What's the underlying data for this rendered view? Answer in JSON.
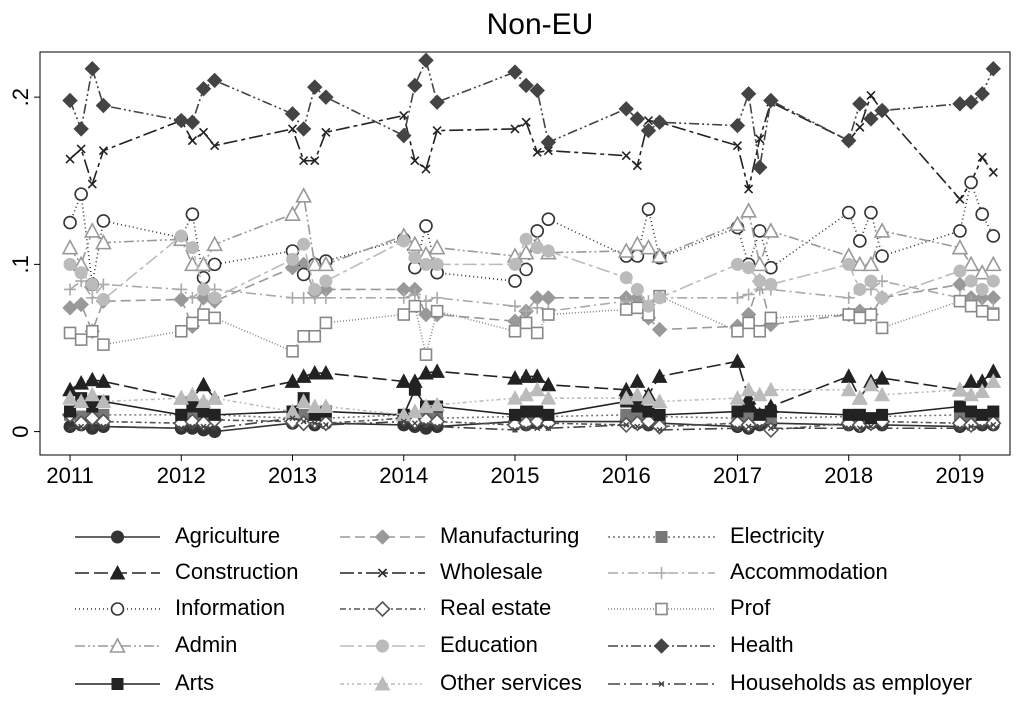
{
  "chart_data": {
    "type": "line",
    "title": "Non-EU",
    "x": [
      2011,
      2011.1,
      2011.2,
      2011.3,
      2012,
      2012.1,
      2012.2,
      2012.3,
      2013,
      2013.1,
      2013.2,
      2013.3,
      2014,
      2014.1,
      2014.2,
      2014.3,
      2015,
      2015.1,
      2015.2,
      2015.3,
      2016,
      2016.1,
      2016.2,
      2016.3,
      2017,
      2017.1,
      2017.2,
      2017.3,
      2018,
      2018.1,
      2018.2,
      2018.3,
      2019,
      2019.1,
      2019.2,
      2019.3
    ],
    "xlim": [
      2010.73,
      2019.45
    ],
    "xticks": [
      2011,
      2012,
      2013,
      2014,
      2015,
      2016,
      2017,
      2018,
      2019
    ],
    "ylim": [
      -0.014,
      0.227
    ],
    "yticks": [
      0,
      {
        "value": 0.1,
        "label": ".1"
      },
      {
        "value": 0.2,
        "label": ".2"
      }
    ],
    "series": [
      {
        "name": "Agriculture",
        "color": "#333333",
        "marker": "circle",
        "hollow": false,
        "dash": "",
        "values": [
          0.003,
          0.004,
          0.002,
          0.003,
          0.002,
          0.002,
          0.001,
          0,
          0.005,
          0.006,
          0.004,
          0.005,
          0.004,
          0.003,
          0.002,
          0.003,
          0.006,
          0.004,
          0.005,
          0.006,
          0.006,
          0.005,
          0.004,
          0.005,
          0.003,
          0.002,
          0.004,
          0.005,
          0.004,
          0.003,
          0.005,
          0.004,
          0.003,
          0.004,
          0.004,
          0.004
        ]
      },
      {
        "name": "Manufacturing",
        "color": "#999999",
        "marker": "diamond",
        "hollow": false,
        "dash": "10,5",
        "values": [
          0.074,
          0.076,
          0.06,
          0.078,
          0.079,
          0.063,
          0.08,
          0.078,
          0.098,
          0.1,
          0.083,
          0.085,
          0.085,
          0.085,
          0.07,
          0.07,
          0.066,
          0.072,
          0.08,
          0.08,
          0.08,
          0.08,
          0.068,
          0.061,
          0.063,
          0.07,
          0.09,
          0.064,
          0.07,
          0.072,
          0.07,
          0.08,
          0.088,
          0.08,
          0.08,
          0.08
        ]
      },
      {
        "name": "Electricity",
        "color": "#777777",
        "marker": "square",
        "hollow": false,
        "dash": "2,3",
        "values": [
          0.01,
          0.009,
          0.008,
          0.01,
          0.01,
          0.009,
          0.008,
          0.01,
          0.008,
          0.01,
          0.009,
          0.008,
          0.01,
          0.009,
          0.01,
          0.008,
          0.009,
          0.01,
          0.008,
          0.009,
          0.01,
          0.009,
          0.008,
          0.009,
          0.008,
          0.009,
          0.01,
          0.008,
          0.009,
          0.01,
          0.008,
          0.009,
          0.01,
          0.009,
          0.008,
          0.009
        ]
      },
      {
        "name": "Construction",
        "color": "#222222",
        "marker": "triangle",
        "hollow": false,
        "dash": "14,5",
        "values": [
          0.025,
          0.029,
          0.031,
          0.03,
          0.02,
          0.02,
          0.028,
          0.02,
          0.03,
          0.033,
          0.035,
          0.035,
          0.03,
          0.03,
          0.035,
          0.036,
          0.032,
          0.033,
          0.033,
          0.028,
          0.025,
          0.03,
          0.022,
          0.033,
          0.042,
          0.02,
          0.01,
          0.015,
          0.033,
          0.02,
          0.03,
          0.032,
          0.025,
          0.03,
          0.03,
          0.036
        ]
      },
      {
        "name": "Wholesale",
        "color": "#222222",
        "marker": "x",
        "hollow": false,
        "dash": "14,4,4,4",
        "values": [
          0.163,
          0.169,
          0.148,
          0.168,
          0.186,
          0.174,
          0.179,
          0.171,
          0.181,
          0.162,
          0.162,
          0.179,
          0.189,
          0.162,
          0.157,
          0.18,
          0.181,
          0.185,
          0.167,
          0.168,
          0.165,
          0.159,
          0.186,
          0.185,
          0.171,
          0.145,
          0.175,
          0.197,
          0.174,
          0.182,
          0.201,
          0.192,
          0.139,
          0.149,
          0.164,
          0.155
        ]
      },
      {
        "name": "Accommodation",
        "color": "#aaaaaa",
        "marker": "plus",
        "hollow": false,
        "dash": "10,4,2,4",
        "values": [
          0.085,
          0.09,
          0.08,
          0.088,
          0.085,
          0.08,
          0.085,
          0.085,
          0.08,
          0.08,
          0.08,
          0.08,
          0.08,
          0.082,
          0.078,
          0.08,
          0.075,
          0.072,
          0.074,
          0.072,
          0.078,
          0.075,
          0.078,
          0.08,
          0.08,
          0.082,
          0.085,
          0.085,
          0.08,
          0.085,
          0.085,
          0.09,
          0.08,
          0.078,
          0.075,
          0.074
        ]
      },
      {
        "name": "Information",
        "color": "#333333",
        "marker": "circle",
        "hollow": true,
        "dash": "1,3",
        "values": [
          0.125,
          0.142,
          0.088,
          0.126,
          0.116,
          0.13,
          0.092,
          0.1,
          0.108,
          0.094,
          0.1,
          0.102,
          0.115,
          0.098,
          0.123,
          0.095,
          0.09,
          0.097,
          0.12,
          0.127,
          0.105,
          0.105,
          0.133,
          0.104,
          0.122,
          0.1,
          0.12,
          0.098,
          0.131,
          0.114,
          0.131,
          0.105,
          0.12,
          0.149,
          0.13,
          0.117
        ]
      },
      {
        "name": "Real estate",
        "color": "#555555",
        "marker": "diamond",
        "hollow": true,
        "dash": "6,3,2,3",
        "values": [
          0.01,
          0.005,
          0.008,
          0.006,
          0.005,
          0.006,
          0.005,
          0.007,
          0.006,
          0.005,
          0.006,
          0.005,
          0.008,
          0.006,
          0.007,
          0.006,
          0.004,
          0.005,
          0.006,
          0.005,
          0.004,
          0.005,
          0.006,
          0.003,
          0.005,
          0.004,
          0.006,
          0.001,
          0.005,
          0.004,
          0.005,
          0.006,
          0.005,
          0.004,
          0.006,
          0.005
        ]
      },
      {
        "name": "Prof",
        "color": "#888888",
        "marker": "square",
        "hollow": true,
        "dash": "1,2",
        "values": [
          0.059,
          0.055,
          0.06,
          0.052,
          0.06,
          0.065,
          0.07,
          0.068,
          0.048,
          0.057,
          0.057,
          0.065,
          0.07,
          0.075,
          0.046,
          0.072,
          0.06,
          0.065,
          0.059,
          0.07,
          0.073,
          0.074,
          0.07,
          0.081,
          0.06,
          0.065,
          0.06,
          0.068,
          0.07,
          0.068,
          0.07,
          0.062,
          0.078,
          0.075,
          0.072,
          0.07
        ]
      },
      {
        "name": "Admin",
        "color": "#999999",
        "marker": "triangle",
        "hollow": true,
        "dash": "10,3,2,3,2,3",
        "values": [
          0.11,
          0.1,
          0.12,
          0.113,
          0.115,
          0.1,
          0.1,
          0.112,
          0.13,
          0.141,
          0.1,
          0.1,
          0.117,
          0.112,
          0.106,
          0.11,
          0.105,
          0.107,
          0.112,
          0.107,
          0.108,
          0.112,
          0.11,
          0.105,
          0.124,
          0.132,
          0.1,
          0.12,
          0.105,
          0.1,
          0.1,
          0.12,
          0.11,
          0.1,
          0.095,
          0.1
        ]
      },
      {
        "name": "Education",
        "color": "#bbbbbb",
        "marker": "circle",
        "hollow": false,
        "dash": "14,4,4,4",
        "values": [
          0.1,
          0.095,
          0.088,
          0.079,
          0.117,
          0.11,
          0.085,
          0.08,
          0.103,
          0.112,
          0.085,
          0.09,
          0.114,
          0.104,
          0.1,
          0.1,
          0.1,
          0.115,
          0.11,
          0.108,
          0.092,
          0.085,
          0.075,
          0.08,
          0.1,
          0.098,
          0.09,
          0.088,
          0.1,
          0.085,
          0.09,
          0.08,
          0.096,
          0.09,
          0.085,
          0.09
        ]
      },
      {
        "name": "Health",
        "color": "#444444",
        "marker": "diamond",
        "hollow": false,
        "dash": "10,3,2,3,2,3",
        "values": [
          0.198,
          0.181,
          0.217,
          0.195,
          0.186,
          0.185,
          0.205,
          0.21,
          0.19,
          0.181,
          0.206,
          0.2,
          0.177,
          0.207,
          0.222,
          0.197,
          0.215,
          0.207,
          0.204,
          0.173,
          0.193,
          0.187,
          0.18,
          0.185,
          0.183,
          0.202,
          0.158,
          0.198,
          0.174,
          0.196,
          0.187,
          0.192,
          0.196,
          0.197,
          0.202,
          0.217
        ]
      },
      {
        "name": "Arts",
        "color": "#222222",
        "marker": "square",
        "hollow": false,
        "dash": "",
        "values": [
          0.012,
          0.02,
          0.015,
          0.018,
          0.01,
          0.015,
          0.012,
          0.01,
          0.012,
          0.02,
          0.01,
          0.012,
          0.01,
          0.025,
          0.015,
          0.015,
          0.01,
          0.012,
          0.012,
          0.01,
          0.018,
          0.015,
          0.012,
          0.01,
          0.012,
          0.015,
          0.01,
          0.012,
          0.01,
          0.01,
          0.008,
          0.01,
          0.015,
          0.012,
          0.01,
          0.012
        ]
      },
      {
        "name": "Other services",
        "color": "#bbbbbb",
        "marker": "triangle",
        "hollow": false,
        "dash": "4,3,2,3,2,3",
        "values": [
          0.02,
          0.018,
          0.022,
          0.018,
          0.02,
          0.022,
          0.018,
          0.02,
          0.012,
          0.018,
          0.015,
          0.015,
          0.01,
          0.012,
          0.015,
          0.016,
          0.02,
          0.022,
          0.025,
          0.02,
          0.02,
          0.022,
          0.02,
          0.018,
          0.02,
          0.025,
          0.022,
          0.025,
          0.025,
          0.02,
          0.028,
          0.022,
          0.025,
          0.022,
          0.024,
          0.03
        ]
      },
      {
        "name": "Households as employer",
        "color": "#444444",
        "marker": "smallx",
        "hollow": false,
        "dash": "12,4,2,4",
        "values": [
          0.002,
          0.003,
          0.002,
          0.003,
          0.002,
          0.003,
          0.003,
          0.002,
          0.008,
          0.006,
          0.005,
          0.004,
          0.006,
          0.005,
          0.004,
          0.003,
          0.001,
          0.002,
          0.002,
          0.002,
          0.004,
          0.003,
          0.002,
          0.001,
          0.002,
          0.003,
          0.003,
          0.002,
          0.002,
          0.002,
          0.003,
          0.002,
          0.002,
          0.003,
          0.003,
          0.004
        ]
      }
    ]
  }
}
